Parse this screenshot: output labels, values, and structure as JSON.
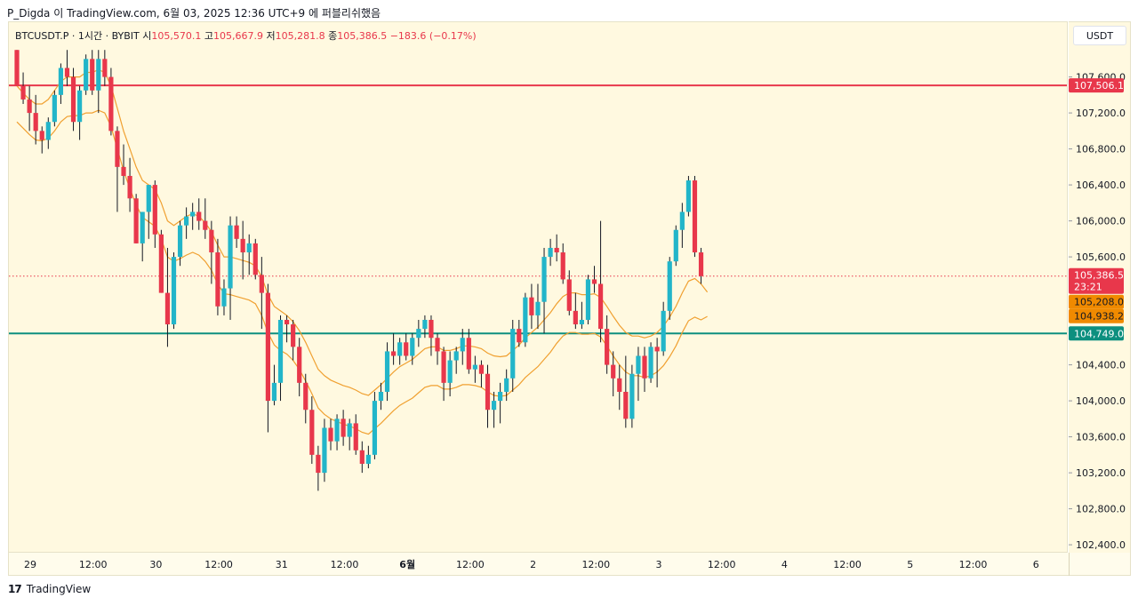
{
  "header": {
    "text": "P_Digda 이 TradingView.com, 6월 03, 2025 12:36 UTC+9 에 퍼블리쉬했음"
  },
  "legend": {
    "symbol": "BTCUSDT.P",
    "timeframe": "· 1시간 · BYBIT",
    "open_label": "시",
    "open_value": "105,570.1",
    "high_label": "고",
    "high_value": "105,667.9",
    "low_label": "저",
    "low_value": "105,281.8",
    "close_label": "종",
    "close_value": "105,386.5",
    "change_value": "−183.6 (−0.17%)"
  },
  "currency": "USDT",
  "footer": {
    "logo": "17",
    "brand": "TradingView"
  },
  "colors": {
    "up": "#22b5c9",
    "down": "#e8374b",
    "band": "#f0a030",
    "red_line": "#e8374b",
    "teal_line": "#0d8f7f",
    "background": "#fff9e0"
  },
  "chart_data": {
    "type": "candlestick",
    "title": "",
    "xlabel": "",
    "ylabel": "",
    "ylim": [
      102000,
      107900
    ],
    "y_ticks": [
      "107,600.0",
      "107,200.0",
      "106,800.0",
      "106,400.0",
      "106,000.0",
      "105,600.0",
      "104,400.0",
      "104,000.0",
      "103,600.0",
      "103,200.0",
      "102,800.0",
      "102,400.0"
    ],
    "x_ticks": [
      "29",
      "12:00",
      "30",
      "12:00",
      "31",
      "12:00",
      "6월",
      "12:00",
      "2",
      "12:00",
      "3",
      "12:00",
      "4",
      "12:00",
      "5",
      "12:00",
      "6"
    ],
    "horizontal_lines": [
      {
        "price": 107506.1,
        "label": "107,506.1",
        "color": "#e8374b",
        "style": "solid"
      },
      {
        "price": 104749.0,
        "label": "104,749.0",
        "color": "#0d8f7f",
        "style": "solid"
      },
      {
        "price": 105386.5,
        "label": "105,386.5",
        "color": "#e8374b",
        "style": "dotted"
      }
    ],
    "price_badges": [
      {
        "label": "105,386.5",
        "sub": "23:21",
        "color": "#e8374b"
      },
      {
        "label": "105,208.0",
        "color": "#f08a00"
      },
      {
        "label": "104,938.2",
        "color": "#f08a00"
      }
    ],
    "candles": [
      [
        107900,
        107900,
        107500,
        107500
      ],
      [
        107500,
        107650,
        107300,
        107350
      ],
      [
        107350,
        107500,
        107000,
        107200
      ],
      [
        107200,
        107400,
        106850,
        107000
      ],
      [
        107000,
        107050,
        106750,
        106900
      ],
      [
        106900,
        107150,
        106800,
        107100
      ],
      [
        107100,
        107450,
        107050,
        107400
      ],
      [
        107400,
        107750,
        107300,
        107700
      ],
      [
        107700,
        107900,
        107500,
        107600
      ],
      [
        107600,
        107700,
        107000,
        107100
      ],
      [
        107100,
        107500,
        106900,
        107450
      ],
      [
        107450,
        107850,
        107400,
        107800
      ],
      [
        107800,
        107900,
        107400,
        107450
      ],
      [
        107450,
        107900,
        107200,
        107800
      ],
      [
        107800,
        107900,
        107500,
        107600
      ],
      [
        107600,
        107700,
        106950,
        107000
      ],
      [
        107000,
        107050,
        106100,
        106600
      ],
      [
        106600,
        106850,
        106400,
        106500
      ],
      [
        106500,
        106700,
        106100,
        106250
      ],
      [
        106250,
        106300,
        105750,
        105750
      ],
      [
        105750,
        106100,
        105550,
        106100
      ],
      [
        106100,
        106400,
        105800,
        106400
      ],
      [
        106400,
        106450,
        105700,
        105850
      ],
      [
        105850,
        105900,
        105200,
        105200
      ],
      [
        105200,
        105700,
        104600,
        104850
      ],
      [
        104850,
        105650,
        104800,
        105600
      ],
      [
        105600,
        106000,
        105500,
        105950
      ],
      [
        105950,
        106150,
        105800,
        106050
      ],
      [
        106050,
        106200,
        105900,
        106100
      ],
      [
        106100,
        106250,
        105900,
        106000
      ],
      [
        106000,
        106250,
        105800,
        105900
      ],
      [
        105900,
        106000,
        105300,
        105650
      ],
      [
        105650,
        105800,
        104950,
        105050
      ],
      [
        105050,
        105350,
        104950,
        105250
      ],
      [
        105250,
        106050,
        104900,
        105950
      ],
      [
        105950,
        106050,
        105700,
        105800
      ],
      [
        105800,
        106000,
        105350,
        105650
      ],
      [
        105650,
        105850,
        105400,
        105750
      ],
      [
        105750,
        105800,
        105350,
        105400
      ],
      [
        105400,
        105600,
        104800,
        105200
      ],
      [
        105200,
        105300,
        103650,
        104000
      ],
      [
        104000,
        104400,
        103950,
        104200
      ],
      [
        104200,
        104950,
        104000,
        104900
      ],
      [
        104900,
        104950,
        104650,
        104850
      ],
      [
        104850,
        104900,
        104450,
        104600
      ],
      [
        104600,
        104700,
        104050,
        104200
      ],
      [
        104200,
        104300,
        103750,
        103900
      ],
      [
        103900,
        104050,
        103300,
        103400
      ],
      [
        103400,
        103500,
        103000,
        103200
      ],
      [
        103200,
        103800,
        103100,
        103700
      ],
      [
        103700,
        103800,
        103450,
        103550
      ],
      [
        103550,
        103850,
        103450,
        103800
      ],
      [
        103800,
        103900,
        103500,
        103600
      ],
      [
        103600,
        103800,
        103450,
        103750
      ],
      [
        103750,
        103850,
        103400,
        103450
      ],
      [
        103450,
        103550,
        103200,
        103300
      ],
      [
        103300,
        103500,
        103250,
        103400
      ],
      [
        103400,
        104100,
        103350,
        104000
      ],
      [
        104000,
        104200,
        103900,
        104100
      ],
      [
        104100,
        104650,
        104000,
        104550
      ],
      [
        104550,
        104750,
        104400,
        104500
      ],
      [
        104500,
        104700,
        104400,
        104650
      ],
      [
        104650,
        104750,
        104450,
        104500
      ],
      [
        104500,
        104750,
        104400,
        104700
      ],
      [
        104700,
        104900,
        104600,
        104800
      ],
      [
        104800,
        104950,
        104700,
        104900
      ],
      [
        104900,
        104950,
        104500,
        104700
      ],
      [
        104700,
        104750,
        104400,
        104550
      ],
      [
        104550,
        104600,
        104000,
        104200
      ],
      [
        104200,
        104550,
        104050,
        104450
      ],
      [
        104450,
        104600,
        104300,
        104550
      ],
      [
        104550,
        104800,
        104400,
        104700
      ],
      [
        104700,
        104800,
        104300,
        104350
      ],
      [
        104350,
        104500,
        104200,
        104400
      ],
      [
        104400,
        104450,
        104150,
        104300
      ],
      [
        104300,
        104400,
        103700,
        103900
      ],
      [
        103900,
        104100,
        103700,
        104000
      ],
      [
        104000,
        104200,
        103750,
        104100
      ],
      [
        104100,
        104350,
        104000,
        104250
      ],
      [
        104250,
        104900,
        104100,
        104800
      ],
      [
        104800,
        104900,
        104600,
        104650
      ],
      [
        104650,
        105200,
        104600,
        105150
      ],
      [
        105150,
        105300,
        104800,
        104950
      ],
      [
        104950,
        105300,
        104800,
        105100
      ],
      [
        105100,
        105700,
        104750,
        105600
      ],
      [
        105600,
        105800,
        105500,
        105700
      ],
      [
        105700,
        105850,
        105550,
        105650
      ],
      [
        105650,
        105750,
        105300,
        105350
      ],
      [
        105350,
        105450,
        104950,
        105000
      ],
      [
        105000,
        105200,
        104800,
        104850
      ],
      [
        104850,
        105100,
        104800,
        104900
      ],
      [
        104900,
        105400,
        104850,
        105350
      ],
      [
        105350,
        105500,
        105200,
        105300
      ],
      [
        105300,
        106000,
        104650,
        104800
      ],
      [
        104800,
        104950,
        104300,
        104400
      ],
      [
        104400,
        104550,
        104050,
        104250
      ],
      [
        104250,
        104400,
        103900,
        104100
      ],
      [
        104100,
        104500,
        103700,
        103800
      ],
      [
        103800,
        104400,
        103700,
        104300
      ],
      [
        104300,
        104600,
        104000,
        104500
      ],
      [
        104500,
        104600,
        104100,
        104250
      ],
      [
        104250,
        104650,
        104200,
        104600
      ],
      [
        104600,
        104700,
        104150,
        104550
      ],
      [
        104550,
        105100,
        104500,
        105000
      ],
      [
        105000,
        105600,
        104900,
        105550
      ],
      [
        105550,
        105950,
        105500,
        105900
      ],
      [
        105900,
        106200,
        105700,
        106100
      ],
      [
        106100,
        106500,
        106050,
        106450
      ],
      [
        106450,
        106500,
        105600,
        105650
      ],
      [
        105650,
        105700,
        105300,
        105386.5
      ]
    ],
    "bands": {
      "upper_offset_note": "",
      "upper": [
        107500,
        107420,
        107350,
        107300,
        107300,
        107350,
        107450,
        107550,
        107600,
        107600,
        107600,
        107650,
        107650,
        107680,
        107650,
        107500,
        107250,
        107000,
        106800,
        106600,
        106450,
        106400,
        106350,
        106200,
        106000,
        105950,
        106000,
        106050,
        106080,
        106050,
        105980,
        105880,
        105730,
        105600,
        105600,
        105580,
        105560,
        105540,
        105500,
        105380,
        105180,
        105050,
        105000,
        104950,
        104880,
        104780,
        104650,
        104500,
        104350,
        104280,
        104230,
        104200,
        104170,
        104150,
        104120,
        104080,
        104060,
        104120,
        104180,
        104250,
        104320,
        104380,
        104420,
        104460,
        104520,
        104580,
        104600,
        104600,
        104560,
        104560,
        104580,
        104610,
        104610,
        104600,
        104580,
        104530,
        104500,
        104490,
        104500,
        104560,
        104620,
        104700,
        104760,
        104820,
        104900,
        104980,
        105080,
        105160,
        105200,
        105200,
        105180,
        105180,
        105190,
        105150,
        105050,
        104940,
        104840,
        104760,
        104720,
        104720,
        104700,
        104720,
        104760,
        104830,
        104930,
        105050,
        105200,
        105330,
        105360,
        105300,
        105208
      ],
      "lower": [
        107100,
        107030,
        106960,
        106900,
        106890,
        106920,
        107000,
        107100,
        107160,
        107170,
        107170,
        107200,
        107200,
        107230,
        107200,
        107050,
        106800,
        106560,
        106360,
        106180,
        106040,
        105990,
        105940,
        105800,
        105600,
        105550,
        105580,
        105620,
        105650,
        105620,
        105550,
        105450,
        105300,
        105190,
        105180,
        105160,
        105140,
        105120,
        105080,
        104950,
        104760,
        104620,
        104560,
        104520,
        104450,
        104350,
        104220,
        104080,
        103920,
        103850,
        103800,
        103770,
        103740,
        103720,
        103690,
        103650,
        103630,
        103690,
        103750,
        103820,
        103890,
        103950,
        103990,
        104030,
        104090,
        104150,
        104170,
        104170,
        104130,
        104130,
        104150,
        104180,
        104180,
        104170,
        104150,
        104100,
        104060,
        104050,
        104060,
        104120,
        104180,
        104260,
        104320,
        104380,
        104460,
        104540,
        104640,
        104720,
        104760,
        104760,
        104740,
        104740,
        104750,
        104710,
        104610,
        104500,
        104400,
        104320,
        104280,
        104280,
        104260,
        104280,
        104320,
        104390,
        104490,
        104610,
        104760,
        104890,
        104930,
        104900,
        104938
      ]
    }
  }
}
